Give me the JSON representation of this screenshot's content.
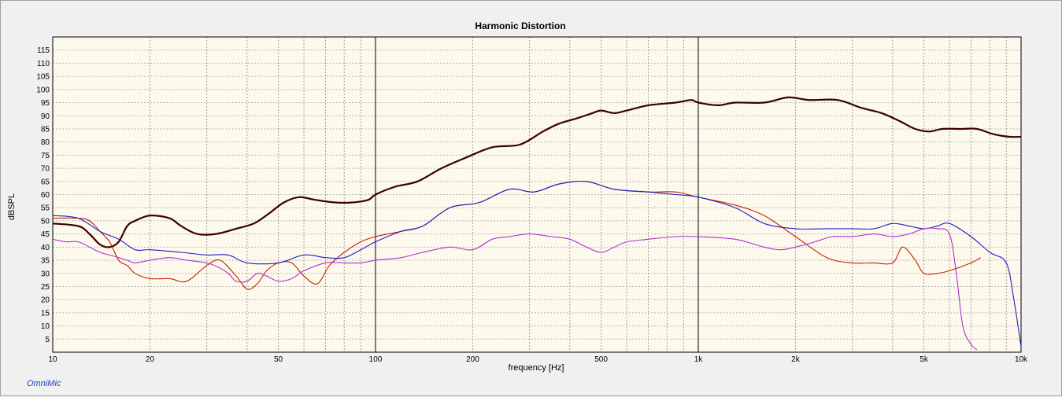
{
  "chart_data": {
    "type": "line",
    "title": "Harmonic Distortion",
    "xlabel": "frequency [Hz]",
    "ylabel": "dBSPL",
    "x_scale": "log",
    "xlim": [
      10,
      10000
    ],
    "ylim": [
      0,
      120
    ],
    "grid": true,
    "x_tick_labels": [
      {
        "value": 10,
        "label": "10"
      },
      {
        "value": 20,
        "label": "20"
      },
      {
        "value": 50,
        "label": "50"
      },
      {
        "value": 100,
        "label": "100"
      },
      {
        "value": 200,
        "label": "200"
      },
      {
        "value": 500,
        "label": "500"
      },
      {
        "value": 1000,
        "label": "1k"
      },
      {
        "value": 2000,
        "label": "2k"
      },
      {
        "value": 5000,
        "label": "5k"
      },
      {
        "value": 10000,
        "label": "10k"
      }
    ],
    "y_tick_labels": [
      "5",
      "10",
      "15",
      "20",
      "25",
      "30",
      "35",
      "40",
      "45",
      "50",
      "55",
      "60",
      "65",
      "70",
      "75",
      "80",
      "85",
      "90",
      "95",
      "100",
      "105",
      "110",
      "115"
    ],
    "plot_background": "#fdf9ec",
    "series": [
      {
        "color": "#3a0000",
        "x": [
          10,
          12,
          13,
          14,
          15,
          16,
          17,
          18,
          20,
          23,
          25,
          28,
          32,
          37,
          42,
          47,
          52,
          58,
          65,
          75,
          85,
          95,
          100,
          115,
          135,
          160,
          190,
          230,
          280,
          330,
          370,
          420,
          470,
          500,
          550,
          600,
          700,
          850,
          950,
          1000,
          1150,
          1300,
          1600,
          1900,
          2200,
          2700,
          3200,
          3700,
          4200,
          4700,
          5200,
          5700,
          6500,
          7300,
          8200,
          9200,
          10000
        ],
        "y": [
          49,
          48,
          45,
          41,
          40,
          42,
          48,
          50,
          52,
          51,
          48,
          45,
          45,
          47,
          49,
          53,
          57,
          59,
          58,
          57,
          57,
          58,
          60,
          63,
          65,
          70,
          74,
          78,
          79,
          84,
          87,
          89,
          91,
          92,
          91,
          92,
          94,
          95,
          96,
          95,
          94,
          95,
          95,
          97,
          96,
          96,
          93,
          91,
          88,
          85,
          84,
          85,
          85,
          85,
          83,
          82,
          82
        ]
      },
      {
        "color": "#c82000",
        "x": [
          10,
          12,
          13,
          14,
          15,
          16,
          17,
          18,
          20,
          23,
          26,
          30,
          33,
          37,
          40,
          43,
          46,
          50,
          55,
          60,
          66,
          72,
          80,
          90,
          100,
          120,
          140,
          170,
          210,
          260,
          310,
          370,
          450,
          550,
          700,
          850,
          1000,
          1300,
          1600,
          2000,
          2500,
          3000,
          3500,
          4000,
          4300,
          4700,
          5000,
          5500,
          6000,
          7000,
          7500
        ],
        "y": [
          51,
          51,
          50,
          46,
          42,
          35,
          33,
          30,
          28,
          28,
          27,
          33,
          35,
          29,
          24,
          26,
          31,
          34,
          34,
          29,
          26,
          33,
          38,
          42,
          44,
          46,
          48,
          55,
          57,
          62,
          61,
          64,
          65,
          62,
          61,
          61,
          59,
          56,
          52,
          44,
          36,
          34,
          34,
          34,
          40,
          35,
          30,
          30,
          31,
          34,
          36
        ]
      },
      {
        "color": "#1a20c8",
        "x": [
          10,
          12,
          14,
          16,
          18,
          20,
          25,
          30,
          35,
          40,
          50,
          60,
          70,
          80,
          90,
          100,
          120,
          140,
          170,
          210,
          260,
          310,
          370,
          450,
          550,
          700,
          850,
          1000,
          1300,
          1600,
          2000,
          2500,
          3000,
          3500,
          4000,
          4500,
          5000,
          5500,
          6000,
          7000,
          8000,
          9000,
          9500,
          10000
        ],
        "y": [
          52,
          51,
          46,
          43,
          39,
          39,
          38,
          37,
          37,
          34,
          34,
          37,
          36,
          36,
          39,
          42,
          46,
          48,
          55,
          57,
          62,
          61,
          64,
          65,
          62,
          61,
          60,
          59,
          55,
          49,
          47,
          47,
          47,
          47,
          49,
          48,
          47,
          48,
          49,
          44,
          38,
          34,
          20,
          2
        ]
      },
      {
        "color": "#b030d0",
        "x": [
          10,
          11,
          12,
          13,
          14,
          15,
          16,
          17,
          18,
          20,
          23,
          26,
          30,
          33,
          35,
          37,
          40,
          43,
          46,
          50,
          55,
          60,
          70,
          80,
          90,
          100,
          120,
          140,
          170,
          200,
          230,
          260,
          300,
          350,
          400,
          450,
          500,
          550,
          600,
          700,
          850,
          1000,
          1300,
          1600,
          1800,
          2000,
          2300,
          2600,
          3000,
          3500,
          4000,
          4500,
          5000,
          5500,
          6000,
          6300,
          6600,
          7000,
          7300
        ],
        "y": [
          43,
          42,
          42,
          40,
          38,
          37,
          36,
          35,
          34,
          35,
          36,
          35,
          34,
          32,
          30,
          27,
          27,
          30,
          29,
          27,
          28,
          31,
          34,
          34,
          34,
          35,
          36,
          38,
          40,
          39,
          43,
          44,
          45,
          44,
          43,
          40,
          38,
          40,
          42,
          43,
          44,
          44,
          43,
          40,
          39,
          40,
          42,
          44,
          44,
          45,
          44,
          45,
          47,
          47,
          45,
          30,
          10,
          3,
          1
        ]
      }
    ],
    "brand": "OmniMic"
  }
}
